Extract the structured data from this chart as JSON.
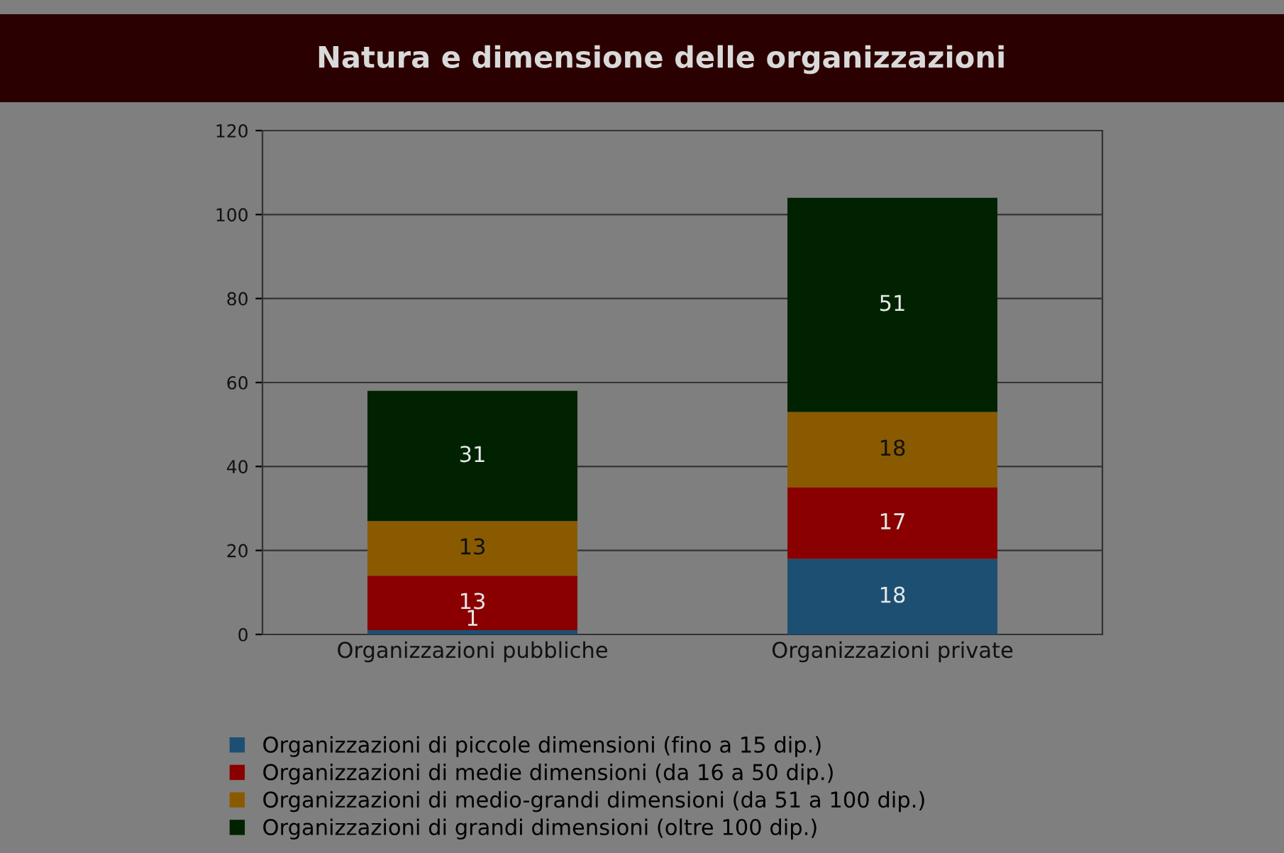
{
  "chart_data": {
    "type": "bar",
    "title": "Natura e dimensione delle organizzazioni",
    "stacked": true,
    "categories": [
      "Organizzazioni pubbliche",
      "Organizzazioni private"
    ],
    "series": [
      {
        "name": "Organizzazioni di piccole dimensioni (fino a 15 dip.)",
        "color": "#1d4f73",
        "values": [
          1,
          18
        ]
      },
      {
        "name": "Organizzazioni di medie dimensioni (da 16 a 50 dip.)",
        "color": "#8a0000",
        "values": [
          13,
          17
        ]
      },
      {
        "name": "Organizzazioni di medio-grandi dimensioni (da 51 a 100 dip.)",
        "color": "#8a5a00",
        "values": [
          13,
          18
        ]
      },
      {
        "name": "Organizzazioni di grandi dimensioni (oltre 100 dip.)",
        "color": "#002200",
        "values": [
          31,
          51
        ]
      }
    ],
    "ylim": [
      0,
      120
    ],
    "yticks": [
      0,
      20,
      40,
      60,
      80,
      100,
      120
    ],
    "grid": "y",
    "legend": "bottom",
    "data_labels": true
  }
}
